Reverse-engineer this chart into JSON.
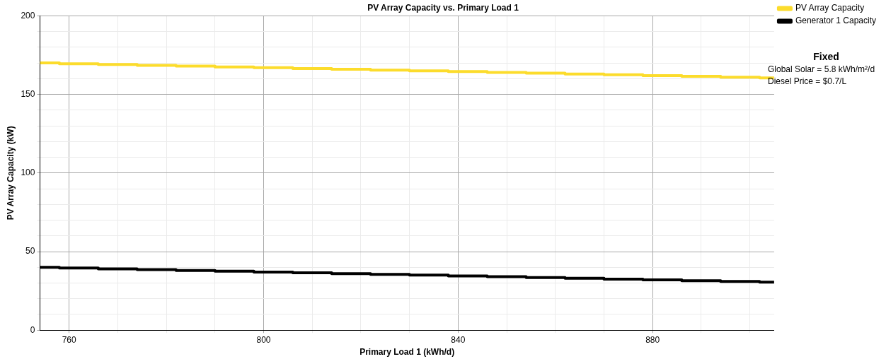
{
  "chart_data": {
    "type": "step",
    "title": "PV Array Capacity vs. Primary Load 1",
    "xlabel": "Primary Load 1 (kWh/d)",
    "ylabel": "PV Array Capacity (kW)",
    "x": [
      754,
      758,
      766,
      774,
      782,
      790,
      798,
      806,
      814,
      822,
      830,
      838,
      846,
      854,
      862,
      870,
      878,
      886,
      894,
      902,
      905
    ],
    "series": [
      {
        "name": "PV Array Capacity",
        "color": "#fcdc2c",
        "values": [
          170,
          169.5,
          169,
          168.5,
          168,
          167.5,
          167,
          166.5,
          166,
          165.5,
          165,
          164.5,
          164,
          163.5,
          163,
          162.5,
          162,
          161.5,
          161,
          160.5,
          160.5
        ]
      },
      {
        "name": "Generator 1 Capacity",
        "color": "#000000",
        "values": [
          40,
          39.5,
          39,
          38.5,
          38,
          37.5,
          37,
          36.5,
          36,
          35.5,
          35,
          34.5,
          34,
          33.5,
          33,
          32.5,
          32,
          31.5,
          31,
          30.5,
          30.5
        ]
      }
    ],
    "xlim": [
      754,
      905
    ],
    "xticks": [
      760,
      {
        "value": 770,
        "label": null
      },
      {
        "value": 780,
        "label": null
      },
      {
        "value": 790,
        "label": null
      },
      800,
      {
        "value": 810,
        "label": null
      },
      {
        "value": 820,
        "label": null
      },
      {
        "value": 830,
        "label": null
      },
      840,
      {
        "value": 850,
        "label": null
      },
      {
        "value": 860,
        "label": null
      },
      {
        "value": 870,
        "label": null
      },
      880,
      {
        "value": 890,
        "label": null
      },
      {
        "value": 900,
        "label": null
      }
    ],
    "ylim": [
      0,
      200
    ],
    "yticks": [
      0,
      {
        "value": 10,
        "label": null
      },
      {
        "value": 20,
        "label": null
      },
      {
        "value": 30,
        "label": null
      },
      {
        "value": 40,
        "label": null
      },
      50,
      {
        "value": 60,
        "label": null
      },
      {
        "value": 70,
        "label": null
      },
      {
        "value": 80,
        "label": null
      },
      {
        "value": 90,
        "label": null
      },
      100,
      {
        "value": 110,
        "label": null
      },
      {
        "value": 120,
        "label": null
      },
      {
        "value": 130,
        "label": null
      },
      {
        "value": 140,
        "label": null
      },
      150,
      {
        "value": 160,
        "label": null
      },
      {
        "value": 170,
        "label": null
      },
      {
        "value": 180,
        "label": null
      },
      {
        "value": 190,
        "label": null
      },
      200
    ],
    "grid": true,
    "legend": "top right",
    "marker": "none",
    "line_style": "solid",
    "annotations": [
      "Fixed",
      "Global Solar = 5.8 kWh/m²/d",
      "Diesel Price = $0.7/L"
    ]
  }
}
